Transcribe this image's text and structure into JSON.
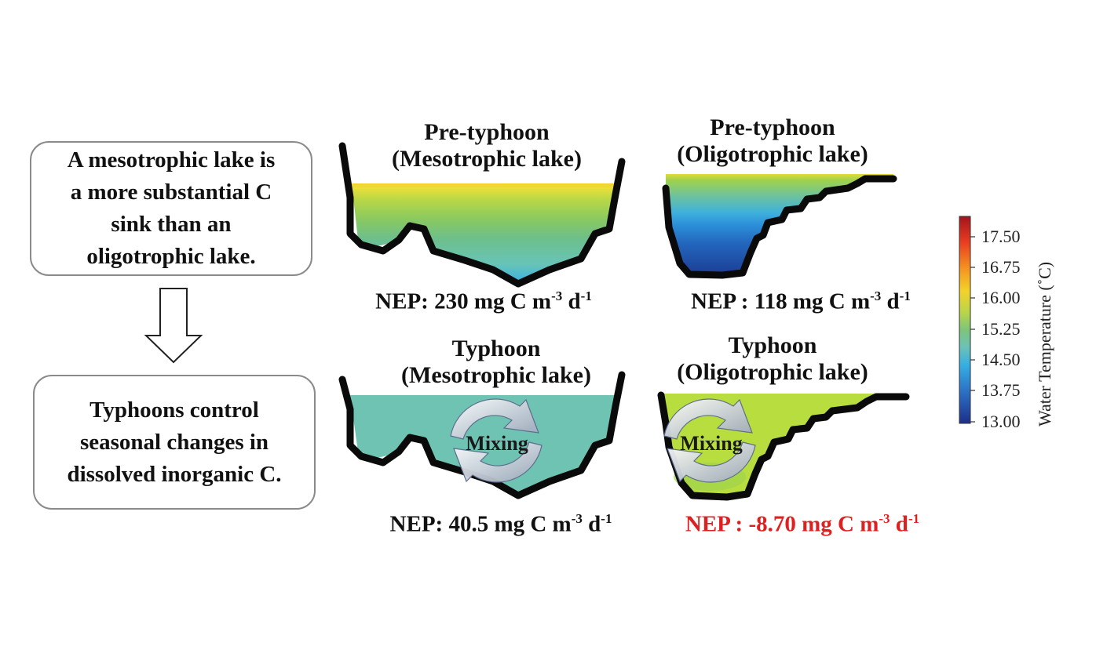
{
  "summary_boxes": [
    {
      "text_lines": [
        "A mesotrophic lake is",
        "a more substantial C",
        "sink than an",
        "oligotrophic lake."
      ]
    },
    {
      "text_lines": [
        "Typhoons control",
        "seasonal changes in",
        "dissolved inorganic C."
      ]
    }
  ],
  "panels": {
    "pre_meso": {
      "title": "Pre-typhoon",
      "subtitle": "(Mesotrophic lake)",
      "nep_prefix": "NEP: 230 mg C m",
      "exp1": "-3",
      "mid": " d",
      "exp2": "-1"
    },
    "pre_oligo": {
      "title": "Pre-typhoon",
      "subtitle": "(Oligotrophic lake)",
      "nep_prefix": "NEP : 118 mg C m",
      "exp1": "-3",
      "mid": " d",
      "exp2": "-1"
    },
    "ty_meso": {
      "title": "Typhoon",
      "subtitle": "(Mesotrophic lake)",
      "nep_prefix": "NEP:  40.5 mg C m",
      "exp1": "-3",
      "mid": " d",
      "exp2": "-1",
      "mixing": "Mixing"
    },
    "ty_oligo": {
      "title": "Typhoon",
      "subtitle": "(Oligotrophic lake)",
      "nep_prefix": "NEP : -8.70 mg C m",
      "exp1": "-3",
      "mid": " d",
      "exp2": "-1",
      "mixing": "Mixing",
      "nep_color": "#e02020"
    }
  },
  "colorbar": {
    "title": "Water Temperature (˚C)",
    "ticks": [
      "17.50",
      "16.75",
      "16.00",
      "15.25",
      "14.50",
      "13.75",
      "13.00"
    ]
  },
  "colors": {
    "meso_typhoon_water": "#6fc3b3",
    "oligo_typhoon_water": "#b8dd3f",
    "negative_nep": "#e02020"
  }
}
